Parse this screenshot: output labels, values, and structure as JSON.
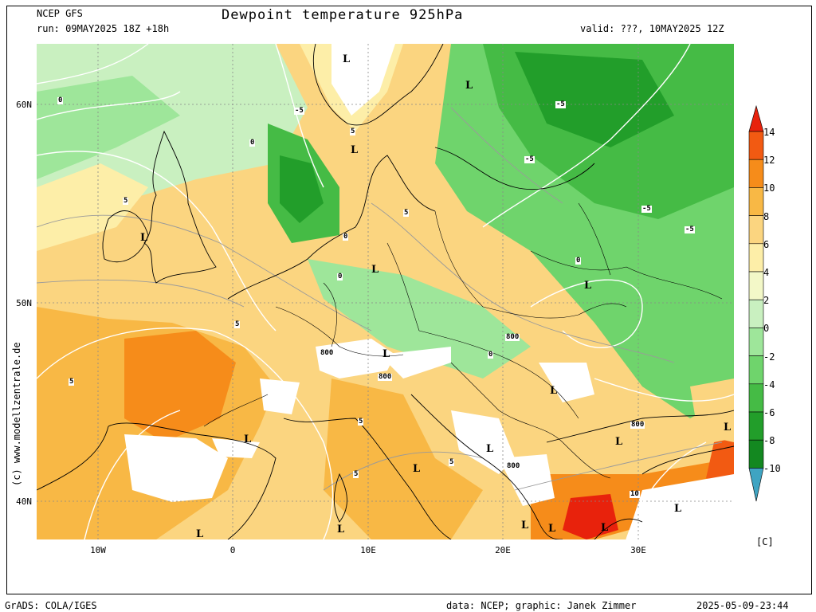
{
  "header": {
    "model": "NCEP GFS",
    "run": "run: 09MAY2025 18Z +18h",
    "title": "Dewpoint temperature 925hPa",
    "valid": "valid: ???, 10MAY2025 12Z"
  },
  "axes": {
    "lat_labels": [
      "60N",
      "50N",
      "40N"
    ],
    "lon_labels": [
      "10W",
      "0",
      "10E",
      "20E",
      "30E"
    ]
  },
  "legend": {
    "values": [
      "14",
      "12",
      "10",
      "8",
      "6",
      "4",
      "2",
      "0",
      "-2",
      "-4",
      "-6",
      "-8",
      "-10"
    ],
    "unit": "[C]",
    "colors": [
      "#e8220c",
      "#f25a12",
      "#f68c1a",
      "#f8b845",
      "#fbd580",
      "#fdeea8",
      "#f3f8c8",
      "#c9f0c0",
      "#9ee69a",
      "#6fd46c",
      "#45bb45",
      "#229e2a",
      "#138820"
    ],
    "under_color": "#3fa4c2"
  },
  "watermark": "(c) www.modellzentrale.de",
  "footer": {
    "left": "GrADS: COLA/IGES",
    "center": "data: NCEP; graphic: Janek Zimmer",
    "right": "2025-05-09-23:44"
  },
  "map_labels": {
    "lows": [
      "L",
      "L",
      "L",
      "L",
      "L",
      "L",
      "L",
      "L",
      "L",
      "L",
      "L",
      "L",
      "L",
      "L",
      "L",
      "L",
      "L",
      "L",
      "L"
    ],
    "contours": [
      "-5",
      "-5",
      "-5",
      "-5",
      "-5",
      "0",
      "0",
      "0",
      "0",
      "0",
      "0",
      "5",
      "5",
      "5",
      "5",
      "5",
      "5",
      "5",
      "5",
      "10",
      "800",
      "800",
      "800",
      "800",
      "800"
    ]
  },
  "colors": {
    "land_outline": "#000000",
    "isoline_grey": "#9a9a9a",
    "isobar_white": "#ffffff",
    "grid": "#888888"
  }
}
